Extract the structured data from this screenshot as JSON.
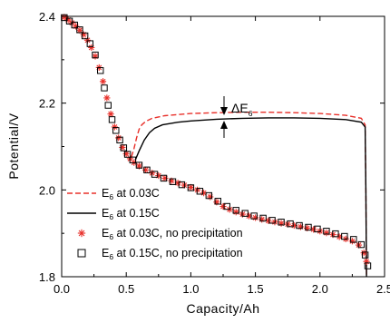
{
  "chart_data": {
    "type": "line",
    "xlabel": "Capacity/Ah",
    "ylabel": "Potential/V",
    "xlim": [
      0.0,
      2.5
    ],
    "ylim": [
      1.8,
      2.4
    ],
    "xticks": [
      0.0,
      0.5,
      1.0,
      1.5,
      2.0,
      2.5
    ],
    "xtick_labels": [
      "0.0",
      "0.5",
      "1.0",
      "1.5",
      "2.0",
      "2.5"
    ],
    "yticks": [
      1.8,
      2.0,
      2.2,
      2.4
    ],
    "ytick_labels": [
      "1.8",
      "2.0",
      "2.2",
      "2.4"
    ],
    "grid": false,
    "legend_position": "bottom-left",
    "annotation": {
      "text": "ΔE",
      "subscript": "6"
    },
    "series": [
      {
        "name": "E6 at 0.03C",
        "label_main": "E",
        "label_sub": "6",
        "label_rest": " at 0.03C",
        "style": "dashed",
        "color": "#e8302a",
        "x": [
          0.54,
          0.56,
          0.58,
          0.6,
          0.62,
          0.65,
          0.7,
          0.8,
          1.0,
          1.2,
          1.4,
          1.6,
          1.8,
          2.0,
          2.2,
          2.32,
          2.35,
          2.355,
          2.36
        ],
        "y": [
          2.076,
          2.095,
          2.12,
          2.14,
          2.15,
          2.158,
          2.165,
          2.171,
          2.176,
          2.178,
          2.179,
          2.179,
          2.178,
          2.176,
          2.172,
          2.165,
          2.15,
          2.0,
          1.8
        ]
      },
      {
        "name": "E6 at 0.15C",
        "label_main": "E",
        "label_sub": "6",
        "label_rest": " at 0.15C",
        "style": "solid",
        "color": "#000000",
        "x": [
          0.57,
          0.6,
          0.64,
          0.68,
          0.72,
          0.78,
          0.9,
          1.0,
          1.2,
          1.4,
          1.6,
          1.8,
          2.0,
          2.2,
          2.32,
          2.35,
          2.355,
          2.36
        ],
        "y": [
          2.069,
          2.09,
          2.115,
          2.132,
          2.142,
          2.15,
          2.156,
          2.159,
          2.163,
          2.165,
          2.166,
          2.166,
          2.165,
          2.162,
          2.156,
          2.145,
          2.0,
          1.8
        ]
      },
      {
        "name": "E6 at 0.03C, no precipitation",
        "label_main": "E",
        "label_sub": "6",
        "label_rest": " at 0.03C, no precipitation",
        "style": "asterisk",
        "color": "#e8302a",
        "x": [
          0.02,
          0.05,
          0.08,
          0.11,
          0.14,
          0.17,
          0.2,
          0.23,
          0.26,
          0.29,
          0.32,
          0.35,
          0.38,
          0.41,
          0.44,
          0.47,
          0.5,
          0.53,
          0.56,
          0.6,
          0.65,
          0.7,
          0.75,
          0.8,
          0.85,
          0.9,
          0.95,
          1.0,
          1.05,
          1.1,
          1.15,
          1.2,
          1.25,
          1.3,
          1.35,
          1.4,
          1.45,
          1.5,
          1.55,
          1.6,
          1.65,
          1.7,
          1.75,
          1.8,
          1.85,
          1.9,
          1.95,
          2.0,
          2.05,
          2.1,
          2.15,
          2.2,
          2.25,
          2.3,
          2.34,
          2.36
        ],
        "y": [
          2.398,
          2.392,
          2.385,
          2.377,
          2.368,
          2.358,
          2.345,
          2.328,
          2.308,
          2.282,
          2.25,
          2.212,
          2.175,
          2.145,
          2.12,
          2.098,
          2.083,
          2.072,
          2.063,
          2.055,
          2.046,
          2.039,
          2.033,
          2.027,
          2.021,
          2.016,
          2.011,
          2.006,
          2.0,
          1.993,
          1.984,
          1.972,
          1.962,
          1.955,
          1.949,
          1.944,
          1.94,
          1.936,
          1.932,
          1.929,
          1.926,
          1.923,
          1.921,
          1.918,
          1.915,
          1.912,
          1.909,
          1.905,
          1.901,
          1.897,
          1.892,
          1.887,
          1.882,
          1.873,
          1.855,
          1.835
        ]
      },
      {
        "name": "E6 at 0.15C, no precipitation",
        "label_main": "E",
        "label_sub": "6",
        "label_rest": " at 0.15C, no precipitation",
        "style": "square",
        "color": "#000000",
        "x": [
          0.02,
          0.06,
          0.1,
          0.14,
          0.18,
          0.22,
          0.26,
          0.3,
          0.33,
          0.36,
          0.39,
          0.42,
          0.45,
          0.48,
          0.51,
          0.55,
          0.6,
          0.66,
          0.72,
          0.79,
          0.86,
          0.93,
          1.0,
          1.07,
          1.14,
          1.21,
          1.28,
          1.35,
          1.42,
          1.49,
          1.56,
          1.63,
          1.7,
          1.77,
          1.84,
          1.91,
          1.98,
          2.05,
          2.12,
          2.19,
          2.26,
          2.32,
          2.35,
          2.37
        ],
        "y": [
          2.397,
          2.389,
          2.38,
          2.369,
          2.355,
          2.337,
          2.311,
          2.275,
          2.235,
          2.195,
          2.162,
          2.137,
          2.115,
          2.097,
          2.082,
          2.069,
          2.057,
          2.046,
          2.036,
          2.027,
          2.019,
          2.012,
          2.005,
          1.997,
          1.987,
          1.974,
          1.962,
          1.953,
          1.946,
          1.94,
          1.935,
          1.93,
          1.926,
          1.922,
          1.918,
          1.914,
          1.91,
          1.905,
          1.899,
          1.893,
          1.886,
          1.874,
          1.85,
          1.825
        ]
      }
    ]
  }
}
